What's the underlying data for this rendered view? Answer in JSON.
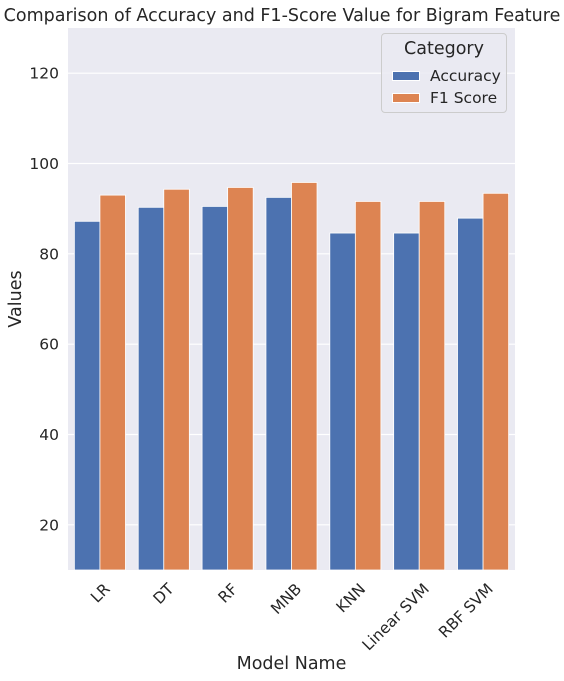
{
  "chart_data": {
    "type": "bar",
    "title": "Comparison of Accuracy and F1-Score Value for Bigram Feature",
    "xlabel": "Model Name",
    "ylabel": "Values",
    "categories": [
      "LR",
      "DT",
      "RF",
      "MNB",
      "KNN",
      "Linear SVM",
      "RBF SVM"
    ],
    "series": [
      {
        "name": "Accuracy",
        "values": [
          87.2,
          90.3,
          90.5,
          92.5,
          84.6,
          84.6,
          87.9
        ],
        "color": "#4c72b0"
      },
      {
        "name": "F1 Score",
        "values": [
          93.0,
          94.3,
          94.7,
          95.8,
          91.6,
          91.6,
          93.4
        ],
        "color": "#dd8452"
      }
    ],
    "ylim": [
      10,
      130
    ],
    "yticks": [
      20,
      40,
      60,
      80,
      100,
      120
    ],
    "grid": true,
    "legend_title": "Category",
    "legend_position": "top-right",
    "background": "#eaeaf2"
  }
}
